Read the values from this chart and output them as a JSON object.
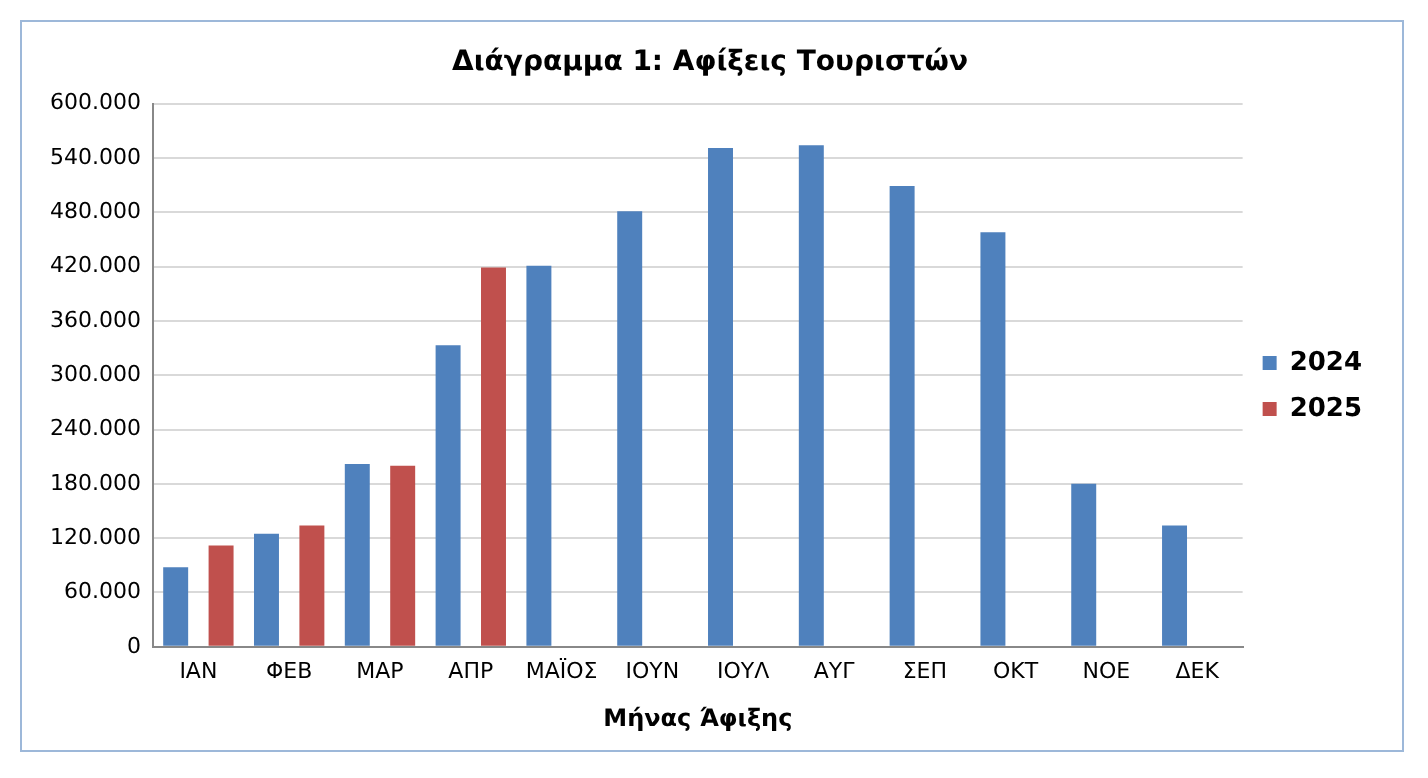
{
  "chart_data": {
    "type": "bar",
    "title": "Διάγραμμα 1: Αφίξεις Τουριστών",
    "xlabel": "Μήνας Άφιξης",
    "categories": [
      "ΙΑΝ",
      "ΦΕΒ",
      "ΜΑΡ",
      "ΑΠΡ",
      "ΜΑΪΟΣ",
      "ΙΟΥΝ",
      "ΙΟΥΛ",
      "ΑΥΓ",
      "ΣΕΠ",
      "ΟΚΤ",
      "ΝΟΕ",
      "ΔΕΚ"
    ],
    "series": [
      {
        "name": "2024",
        "color": "#4f81bd",
        "values": [
          88000,
          125000,
          202000,
          333000,
          421000,
          481000,
          551000,
          554000,
          509000,
          458000,
          180000,
          134000
        ]
      },
      {
        "name": "2025",
        "color": "#c0504d",
        "values": [
          112000,
          134000,
          200000,
          419000,
          null,
          null,
          null,
          null,
          null,
          null,
          null,
          null
        ]
      }
    ],
    "ylim": [
      0,
      600000
    ],
    "yticks": [
      {
        "value": 0,
        "label": "0"
      },
      {
        "value": 60000,
        "label": "60.000"
      },
      {
        "value": 120000,
        "label": "120.000"
      },
      {
        "value": 180000,
        "label": "180.000"
      },
      {
        "value": 240000,
        "label": "240.000"
      },
      {
        "value": 300000,
        "label": "300.000"
      },
      {
        "value": 360000,
        "label": "360.000"
      },
      {
        "value": 420000,
        "label": "420.000"
      },
      {
        "value": 480000,
        "label": "480.000"
      },
      {
        "value": 540000,
        "label": "540.000"
      },
      {
        "value": 600000,
        "label": "600.000"
      }
    ],
    "grid": "y",
    "legend": "right"
  }
}
